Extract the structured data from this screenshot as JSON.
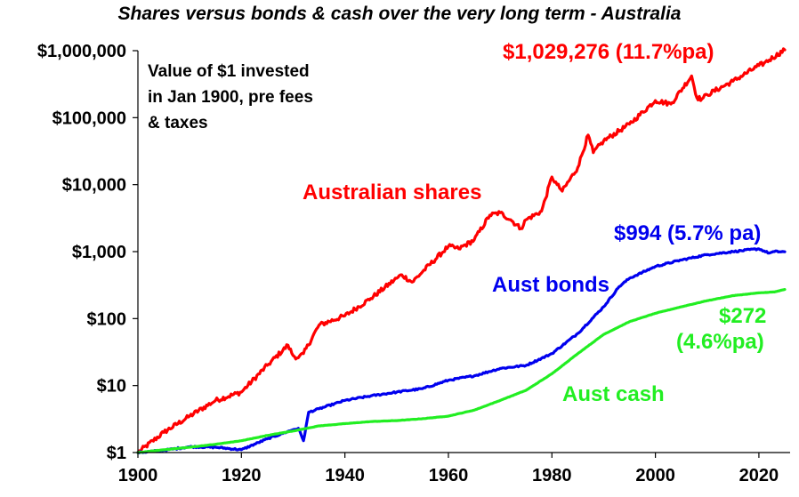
{
  "title": "Shares versus bonds & cash over the very long term - Australia",
  "note": [
    "Value of $1 invested",
    "in Jan 1900, pre fees",
    "& taxes"
  ],
  "colors": {
    "shares": "#ff0000",
    "bonds": "#0000ee",
    "cash": "#22ee22",
    "axis": "#000000"
  },
  "labels": {
    "shares_name": "Australian shares",
    "shares_end": "$1,029,276 (11.7%pa)",
    "bonds_name": "Aust bonds",
    "bonds_end": "$994 (5.7% pa)",
    "cash_name": "Aust cash",
    "cash_end_value": "$272",
    "cash_end_rate": "(4.6%pa)"
  },
  "chart_data": {
    "type": "line",
    "title": "Shares versus bonds & cash over the very long term - Australia",
    "xlabel": "",
    "ylabel": "",
    "y_scale": "log",
    "xlim": [
      1900,
      2025
    ],
    "ylim": [
      1,
      1000000
    ],
    "x_ticks": [
      1900,
      1920,
      1940,
      1960,
      1980,
      2000,
      2020
    ],
    "x_tick_labels": [
      "1900",
      "1920",
      "1940",
      "1960",
      "1980",
      "2000",
      "2020"
    ],
    "y_ticks": [
      1,
      10,
      100,
      1000,
      10000,
      100000,
      1000000
    ],
    "y_tick_labels": [
      "$1",
      "$10",
      "$100",
      "$1,000",
      "$10,000",
      "$100,000",
      "$1,000,000"
    ],
    "grid": false,
    "legend": "none",
    "series": [
      {
        "name": "Australian shares",
        "color": "#ff0000",
        "x": [
          1900,
          1905,
          1910,
          1915,
          1920,
          1925,
          1929,
          1930,
          1931,
          1932,
          1935,
          1940,
          1945,
          1950,
          1951,
          1953,
          1955,
          1960,
          1962,
          1965,
          1968,
          1970,
          1972,
          1974,
          1975,
          1978,
          1980,
          1981,
          1982,
          1985,
          1987,
          1988,
          1990,
          1995,
          2000,
          2003,
          2007,
          2008,
          2009,
          2010,
          2015,
          2020,
          2021,
          2025
        ],
        "y": [
          1,
          2,
          3.5,
          6,
          8,
          20,
          40,
          28,
          26,
          30,
          80,
          110,
          200,
          400,
          450,
          350,
          500,
          1200,
          1100,
          1500,
          3500,
          3800,
          3000,
          2200,
          3000,
          4000,
          13000,
          10000,
          8000,
          18000,
          55000,
          30000,
          45000,
          80000,
          180000,
          160000,
          420000,
          200000,
          190000,
          220000,
          350000,
          600000,
          650000,
          1029276
        ]
      },
      {
        "name": "Aust bonds",
        "color": "#0000ee",
        "x": [
          1900,
          1905,
          1910,
          1915,
          1920,
          1925,
          1930,
          1931,
          1932,
          1933,
          1935,
          1940,
          1945,
          1950,
          1955,
          1960,
          1965,
          1970,
          1975,
          1980,
          1985,
          1990,
          1993,
          1995,
          2000,
          2005,
          2010,
          2015,
          2020,
          2022,
          2023,
          2025
        ],
        "y": [
          1,
          1.08,
          1.22,
          1.2,
          1.1,
          1.6,
          2.2,
          2.3,
          1.5,
          4,
          4.5,
          6,
          7,
          8,
          9,
          12,
          14,
          18,
          20,
          30,
          60,
          150,
          300,
          400,
          600,
          750,
          900,
          1000,
          1100,
          950,
          1000,
          994
        ]
      },
      {
        "name": "Aust cash",
        "color": "#22ee22",
        "x": [
          1900,
          1905,
          1910,
          1915,
          1920,
          1925,
          1930,
          1935,
          1940,
          1945,
          1950,
          1955,
          1960,
          1965,
          1970,
          1975,
          1980,
          1985,
          1990,
          1995,
          2000,
          2005,
          2010,
          2015,
          2020,
          2023,
          2025
        ],
        "y": [
          1,
          1.1,
          1.2,
          1.33,
          1.5,
          1.8,
          2.1,
          2.5,
          2.7,
          2.9,
          3,
          3.2,
          3.5,
          4.3,
          6,
          8.5,
          15,
          30,
          58,
          90,
          120,
          150,
          185,
          220,
          242,
          250,
          272
        ]
      }
    ]
  }
}
